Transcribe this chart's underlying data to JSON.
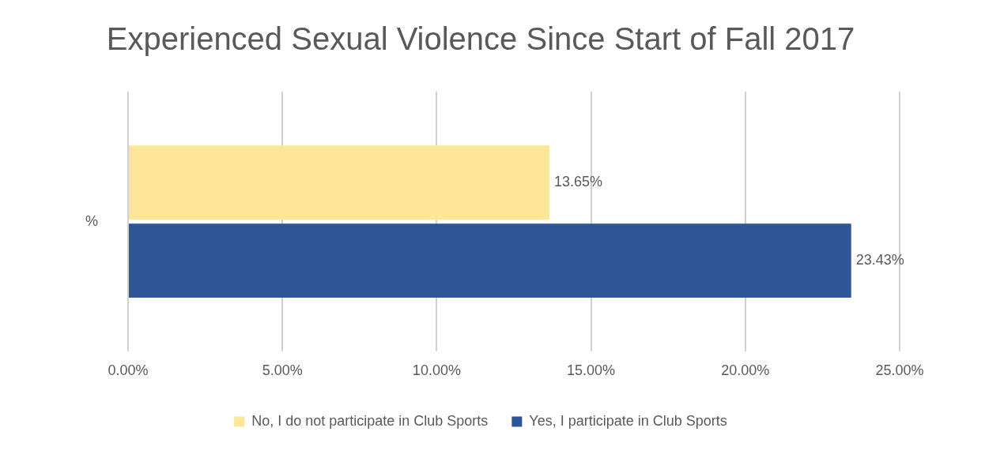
{
  "chart_data": {
    "type": "bar",
    "orientation": "horizontal",
    "title": "Experienced Sexual Violence Since Start of Fall 2017",
    "categories": [
      "%"
    ],
    "series": [
      {
        "name": "No, I do not participate in Club Sports",
        "color": "#fde698",
        "values": [
          13.65
        ],
        "value_labels": [
          "13.65%"
        ]
      },
      {
        "name": "Yes, I participate in Club Sports",
        "color": "#2e5597",
        "values": [
          23.43
        ],
        "value_labels": [
          "23.43%"
        ]
      }
    ],
    "xlim": [
      0,
      25
    ],
    "xticks": [
      {
        "value": 0,
        "label": "0.00%"
      },
      {
        "value": 5,
        "label": "5.00%"
      },
      {
        "value": 10,
        "label": "10.00%"
      },
      {
        "value": 15,
        "label": "15.00%"
      },
      {
        "value": 20,
        "label": "20.00%"
      },
      {
        "value": 25,
        "label": "25.00%"
      }
    ],
    "grid": "x",
    "legend": "bottom"
  }
}
